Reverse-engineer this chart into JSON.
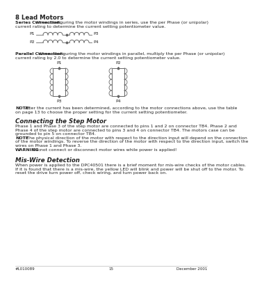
{
  "bg_color": "#ffffff",
  "text_color": "#2a2a2a",
  "title": "8 Lead Motors",
  "series_bold": "Series Connection:",
  "series_text": "When configuring the motor windings in series, use the per Phase (or unipolar) current rating to determine the current setting potentiometer value.",
  "parallel_bold": "Parallel Connection:",
  "parallel_text": "When configuring the motor windings in parallel, multiply the per Phase (or unipolar) current rating by 2.0 to determine the current setting potentiometer value.",
  "note_bold": "NOTE:",
  "note_text": "After the current has been determined, according to the motor connections above, use the table on page 13 to choose the proper setting for the current setting potentiometer.",
  "section2_title": "Connecting the Step Motor",
  "section2_text": "Phase 1 and Phase 3 of the step motor are connected to pins 1 and 2 on connector TB4. Phase 2 and Phase 4 of the step motor are connected to pins 3 and 4 on connector TB4. The motors case can be grounded to pin 5 on connector TB4.",
  "note2_bold": "NOTE",
  "note2_text": ": The physical direction of the motor with respect to the direction input will depend on the connection of the motor windings. To reverse the direction of the motor with respect to the direction input, switch the wires on Phase 1 and Phase 3.",
  "warning_bold": "WARNING:",
  "warning_text": "Do not connect or disconnect motor wires while power is applied!",
  "section3_title": "Mis-Wire Detection",
  "section3_text": "When power is applied to the DPC40501 there is a brief moment for mis-wire checks of the motor cables. If it is found that there is a mis-wire, the yellow LED will blink and power will be shut off to the motor. To reset the drive turn power off, check wiring, and turn power back on.",
  "footer_left": "#L010089",
  "footer_center": "15",
  "footer_right": "December 2001",
  "lc": "#666666",
  "tc": "#222222"
}
